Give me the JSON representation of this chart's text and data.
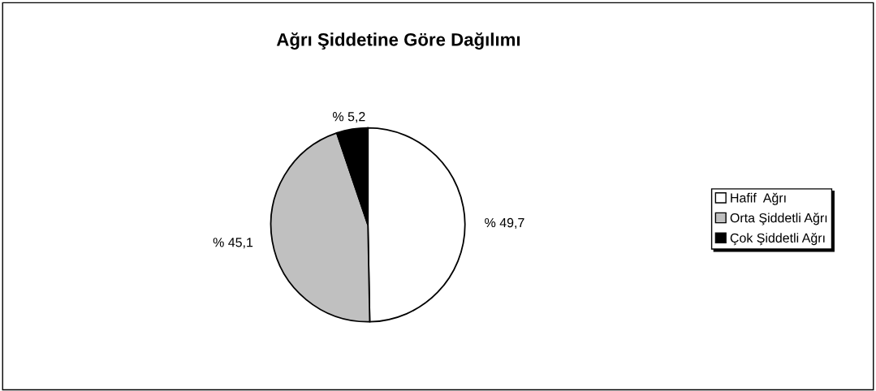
{
  "chart_data": {
    "type": "pie",
    "title": "Ağrı Şiddetine Göre Dağılımı",
    "categories": [
      "Hafif  Ağrı",
      "Orta Şiddetli Ağrı",
      "Çok Şiddetli Ağrı"
    ],
    "values": [
      49.7,
      45.1,
      5.2
    ],
    "colors": [
      "#ffffff",
      "#c0c0c0",
      "#000000"
    ],
    "value_labels": [
      "% 49,7",
      "% 45,1",
      "% 5,2"
    ],
    "legend": "right"
  }
}
